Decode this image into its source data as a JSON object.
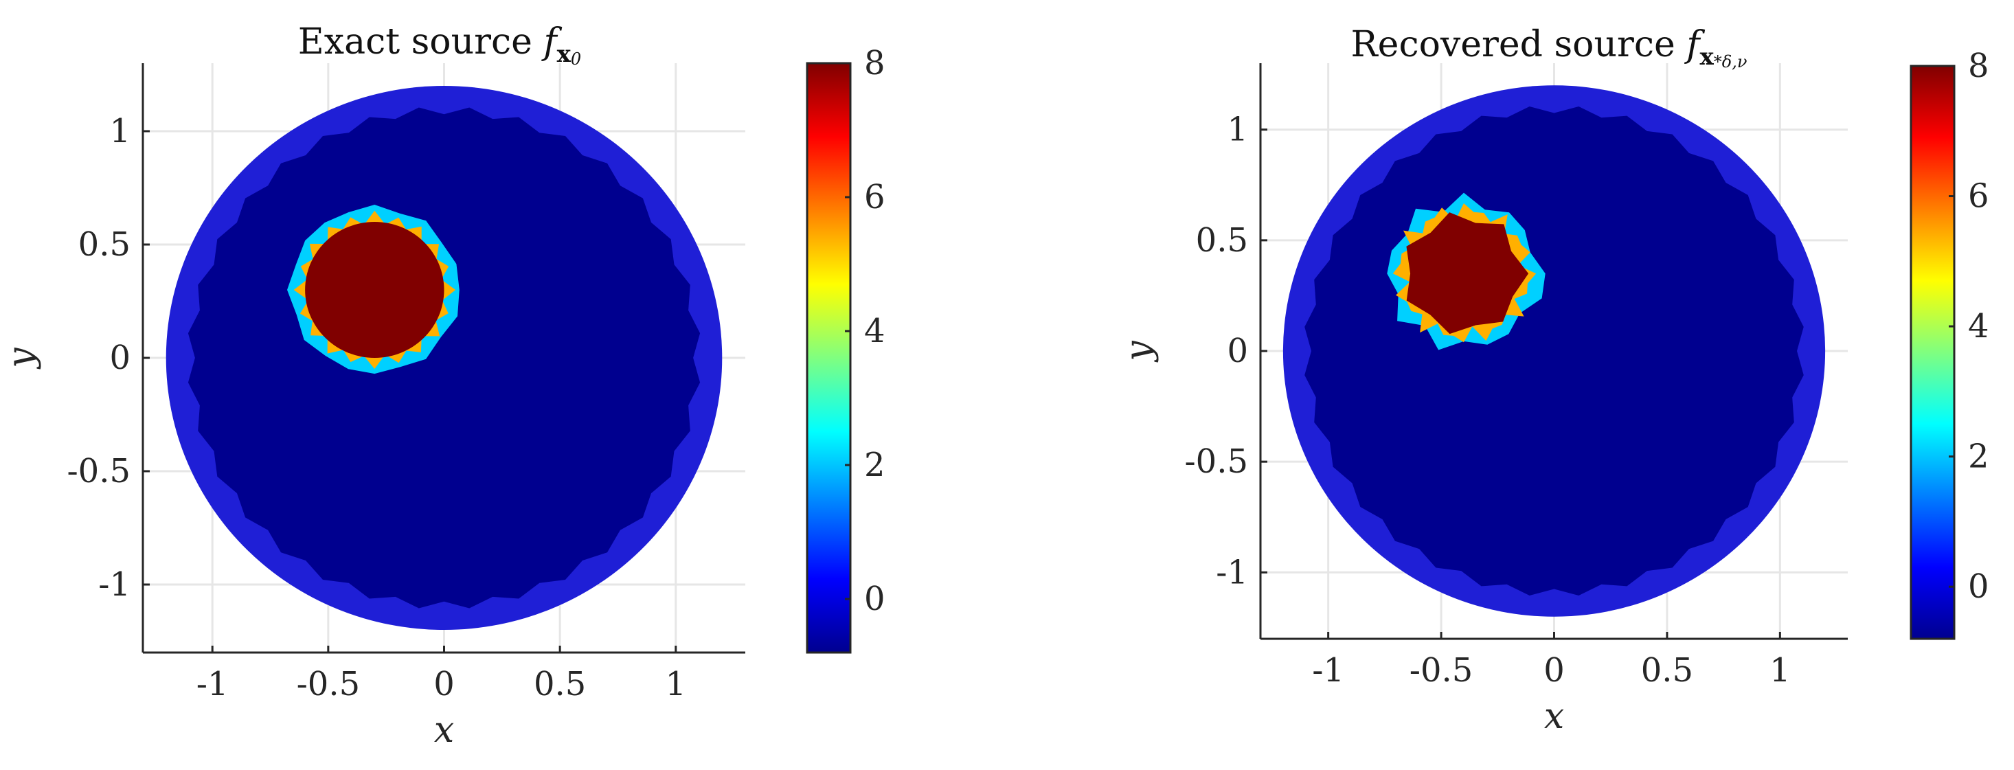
{
  "colors": {
    "background": "#1f1fd6",
    "interior": "#00008f",
    "ring_low": "#00d0ff",
    "ring_mid": "#ffb000",
    "source": "#800000",
    "grid": "#e6e6e6",
    "axis": "#262626"
  },
  "chart_data": [
    {
      "type": "heatmap",
      "title": "Exact source",
      "title_math": "f",
      "title_sub": "x",
      "title_sub2": "0",
      "xlabel": "x",
      "ylabel": "y",
      "xlim": [
        -1.3,
        1.3
      ],
      "ylim": [
        -1.3,
        1.3
      ],
      "xticks": [
        -1,
        -0.5,
        0,
        0.5,
        1
      ],
      "xtick_labels": [
        "-1",
        "-0.5",
        "0",
        "0.5",
        "1"
      ],
      "yticks": [
        -1,
        -0.5,
        0,
        0.5,
        1
      ],
      "ytick_labels": [
        "-1",
        "-0.5",
        "0",
        "0.5",
        "1"
      ],
      "grid": true,
      "domain": {
        "shape": "disk",
        "center": [
          0,
          0
        ],
        "radius": 1.2
      },
      "inclusion": {
        "center": [
          -0.3,
          0.3
        ],
        "radius": 0.3
      },
      "colorbar": {
        "min": -0.8,
        "max": 8,
        "ticks": [
          0,
          2,
          4,
          6,
          8
        ],
        "tick_labels": [
          "0",
          "2",
          "4",
          "6",
          "8"
        ],
        "colormap": "jet"
      },
      "values": {
        "background": -0.5,
        "interior": -0.8,
        "source": 8
      }
    },
    {
      "type": "heatmap",
      "title": "Recovered source",
      "title_math": "f",
      "title_sub": "x",
      "title_sub2": "*δ,ν",
      "xlabel": "x",
      "ylabel": "y",
      "xlim": [
        -1.3,
        1.3
      ],
      "ylim": [
        -1.3,
        1.3
      ],
      "xticks": [
        -1,
        -0.5,
        0,
        0.5,
        1
      ],
      "xtick_labels": [
        "-1",
        "-0.5",
        "0",
        "0.5",
        "1"
      ],
      "yticks": [
        -1,
        -0.5,
        0,
        0.5,
        1
      ],
      "ytick_labels": [
        "-1",
        "-0.5",
        "0",
        "0.5",
        "1"
      ],
      "grid": true,
      "domain": {
        "shape": "disk",
        "center": [
          0,
          0
        ],
        "radius": 1.2
      },
      "inclusion": {
        "center": [
          -0.4,
          0.35
        ],
        "radius": 0.27
      },
      "colorbar": {
        "min": -0.8,
        "max": 8,
        "ticks": [
          0,
          2,
          4,
          6,
          8
        ],
        "tick_labels": [
          "0",
          "2",
          "4",
          "6",
          "8"
        ],
        "colormap": "jet"
      },
      "values": {
        "background": -0.5,
        "interior": -0.8,
        "source": 8
      }
    }
  ]
}
